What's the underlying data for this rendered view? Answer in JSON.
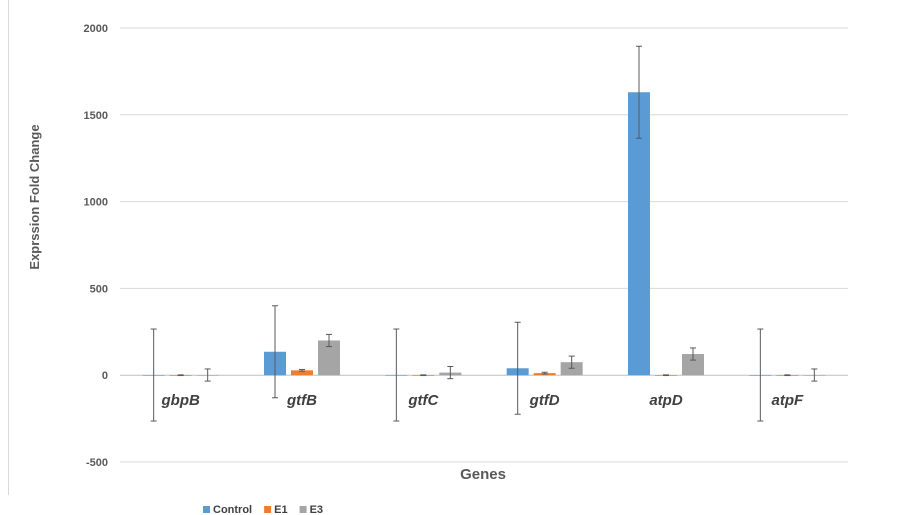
{
  "chart_data": {
    "type": "bar",
    "xlabel": "Genes",
    "ylabel": "Exprssion Fold Change",
    "ylim": [
      -500,
      2000
    ],
    "yticks": [
      -500,
      0,
      500,
      1000,
      1500,
      2000
    ],
    "grid": true,
    "legend_position": "bottom-left",
    "categories": [
      "gbpB",
      "gtfB",
      "gtfC",
      "gtfD",
      "atpD",
      "atpF"
    ],
    "series": [
      {
        "name": "Control",
        "color": "#5b9bd5",
        "values": [
          1,
          135,
          1,
          40,
          1630,
          1
        ],
        "errors": [
          265,
          265,
          265,
          265,
          265,
          265
        ]
      },
      {
        "name": "E1",
        "color": "#ed7d31",
        "values": [
          0,
          28,
          0,
          12,
          0,
          0
        ],
        "errors": [
          2,
          5,
          2,
          5,
          2,
          2
        ]
      },
      {
        "name": "E3",
        "color": "#a5a5a5",
        "values": [
          1,
          200,
          15,
          75,
          122,
          1
        ],
        "errors": [
          35,
          35,
          35,
          35,
          35,
          35
        ]
      }
    ]
  }
}
